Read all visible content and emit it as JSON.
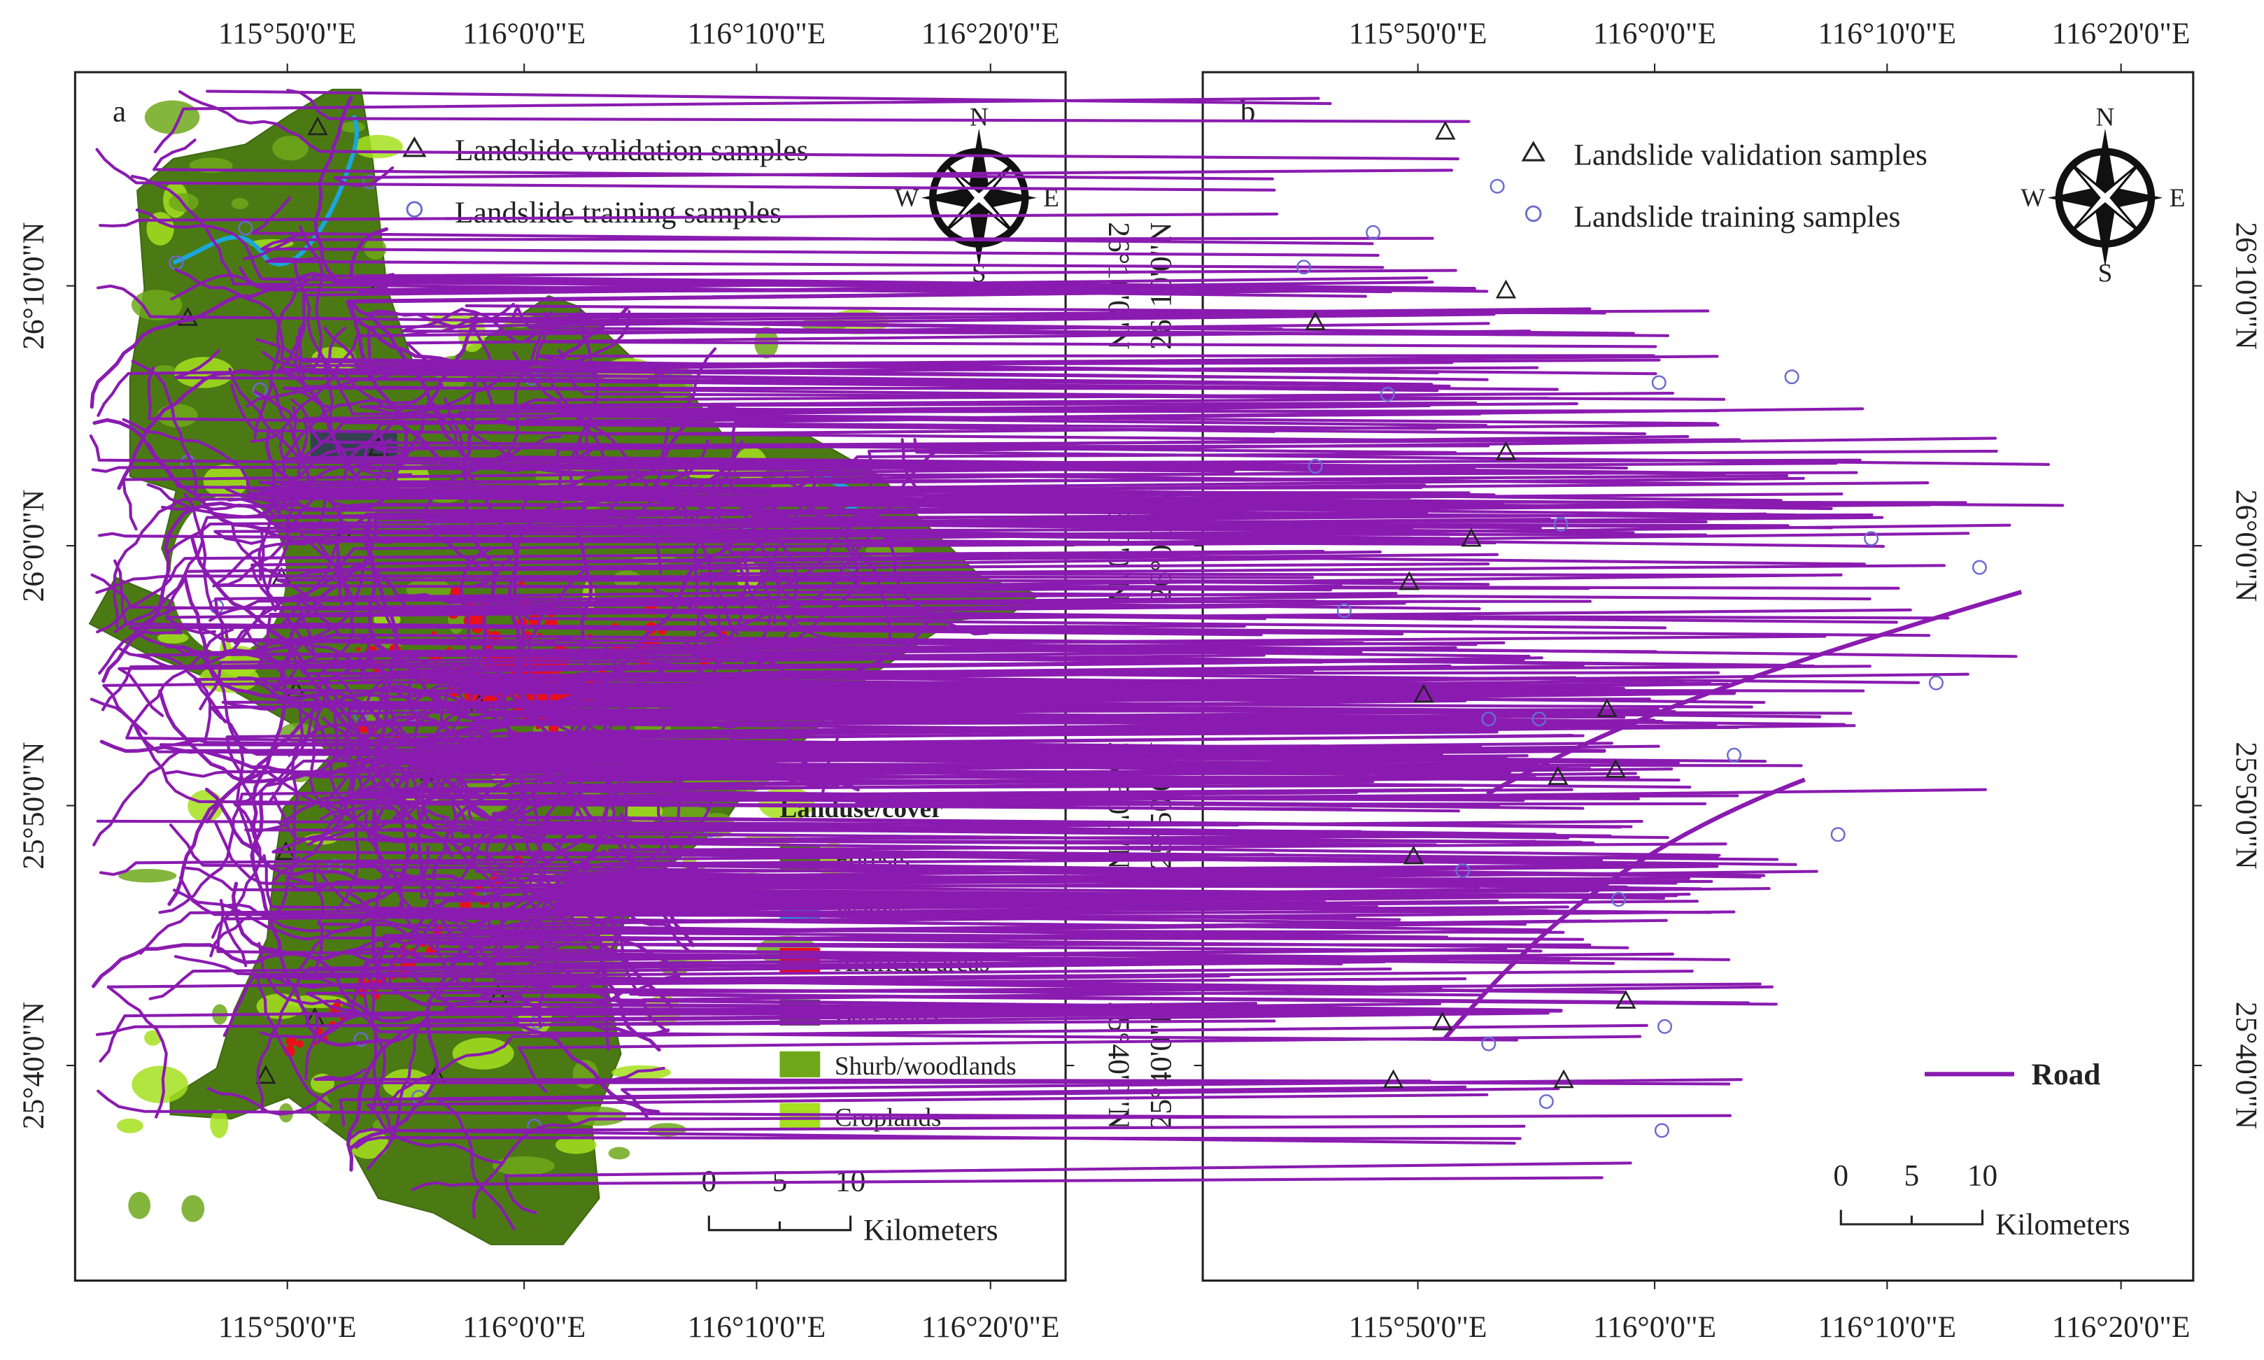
{
  "panels": [
    {
      "label": "a",
      "legend": [
        "Landslide validation samples",
        "Landslide training samples"
      ],
      "compass": [
        "N",
        "S",
        "E",
        "W"
      ],
      "lon_ticks": [
        "115°50'0\"E",
        "116°0'0\"E",
        "116°10'0\"E",
        "116°20'0\"E"
      ],
      "lat_ticks": [
        "26°10'0\"N",
        "26°0'0\"N",
        "25°50'0\"N",
        "25°40'0\"N"
      ],
      "landuse_title": "Landuse/cover",
      "landuse_classes": [
        {
          "name": "Forests",
          "color": "#4b7a14"
        },
        {
          "name": "Waters",
          "color": "#1aa7dd"
        },
        {
          "name": "Artificial areas",
          "color": "#e8101a"
        },
        {
          "name": "Barelands",
          "color": "#555555"
        },
        {
          "name": "Shurb/woodlands",
          "color": "#6ea81a"
        },
        {
          "name": "Croplands",
          "color": "#a6e01e"
        }
      ],
      "scale": [
        0,
        5,
        10
      ],
      "scale_unit": "Kilometers"
    },
    {
      "label": "b",
      "legend": [
        "Landslide validation samples",
        "Landslide training samples"
      ],
      "compass": [
        "N",
        "S",
        "E",
        "W"
      ],
      "lon_ticks": [
        "115°50'0\"E",
        "116°0'0\"E",
        "116°10'0\"E",
        "116°20'0\"E"
      ],
      "lat_ticks": [
        "26°10'0\"N",
        "26°0'0\"N",
        "25°50'0\"N",
        "25°40'0\"N"
      ],
      "road": {
        "name": "Road",
        "color": "#8a1bb0"
      },
      "scale": [
        0,
        5,
        10
      ],
      "scale_unit": "Kilometers"
    }
  ]
}
